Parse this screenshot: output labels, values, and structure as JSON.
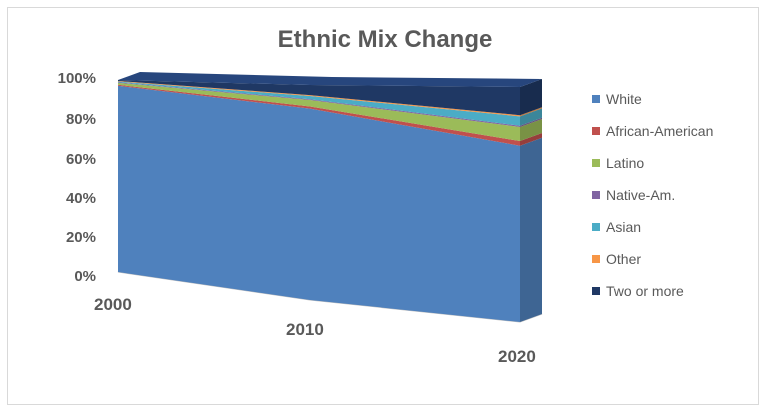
{
  "chart_data": {
    "type": "area",
    "title": "Ethnic Mix Change",
    "categories": [
      "2000",
      "2010",
      "2020"
    ],
    "yticks": [
      "0%",
      "20%",
      "40%",
      "60%",
      "80%",
      "100%"
    ],
    "ylim": [
      0,
      100
    ],
    "stacked": "percent",
    "view": "3d",
    "legend_position": "right",
    "series": [
      {
        "name": "White",
        "values": [
          97,
          89,
          75
        ],
        "color": "#4f81bd"
      },
      {
        "name": "African-American",
        "values": [
          0.5,
          1,
          2
        ],
        "color": "#c0504d"
      },
      {
        "name": "Latino",
        "values": [
          1,
          3,
          6
        ],
        "color": "#9bbb59"
      },
      {
        "name": "Native-Am.",
        "values": [
          0.3,
          0.4,
          0.5
        ],
        "color": "#8064a2"
      },
      {
        "name": "Asian",
        "values": [
          0.4,
          1.5,
          4
        ],
        "color": "#4bacc6"
      },
      {
        "name": "Other",
        "values": [
          0.3,
          0.4,
          0.5
        ],
        "color": "#f79646"
      },
      {
        "name": "Two or more",
        "values": [
          0.5,
          4.7,
          12
        ],
        "color": "#1f3864"
      }
    ]
  }
}
